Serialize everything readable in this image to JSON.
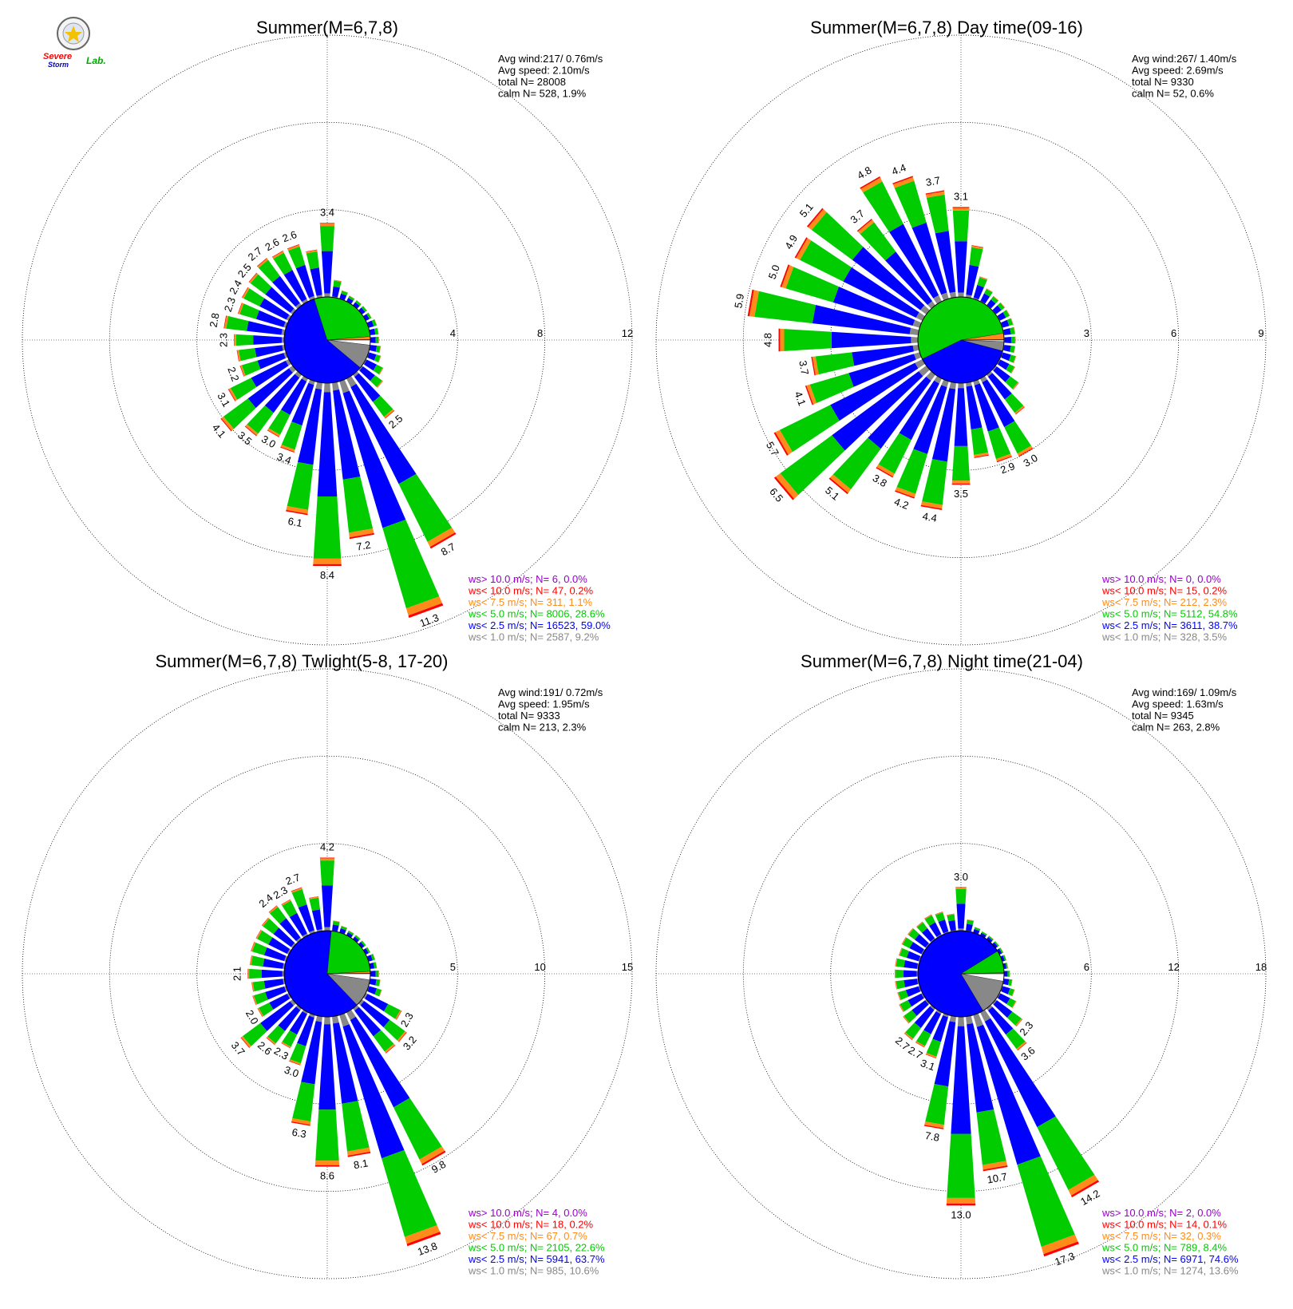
{
  "logo": {
    "line1": "Severe",
    "line2": "Storm",
    "line3": "Lab."
  },
  "legend_colors": {
    "gt10": "#9900cc",
    "lt10": "#ff0000",
    "lt7_5": "#ff8c1a",
    "lt5": "#00cc00",
    "lt2_5": "#0000ff",
    "lt1": "#888888"
  },
  "chart_data": [
    {
      "type": "wind-rose",
      "title": "Summer(M=6,7,8)",
      "rings": [
        4,
        8,
        12
      ],
      "ring_labels": [
        "4",
        "8",
        "12"
      ],
      "stats": {
        "avg_wind": "Avg wind:217/ 0.76m/s",
        "avg_speed": "Avg speed: 2.10m/s",
        "total": "total N=      28008",
        "calm": "calm N=    528,   1.9%"
      },
      "legend": [
        "ws> 10.0 m/s; N=     6,  0.0%",
        "ws< 10.0 m/s; N=    47,  0.2%",
        "ws<  7.5 m/s; N=   311,  1.1%",
        "ws<  5.0 m/s; N=  8006, 28.6%",
        "ws<  2.5 m/s; N= 16523, 59.0%",
        "ws<  1.0 m/s; N=  2587,  9.2%"
      ],
      "speed_pie": [
        1.9,
        9.2,
        59.0,
        28.6,
        1.1,
        0.2
      ],
      "bars": [
        {
          "dir": 0,
          "total": 3.4,
          "label": "3.4"
        },
        {
          "dir": 10,
          "total": 0.8,
          "label": ""
        },
        {
          "dir": 20,
          "total": 0.4,
          "label": ""
        },
        {
          "dir": 30,
          "total": 0.3,
          "label": ""
        },
        {
          "dir": 40,
          "total": 0.3,
          "label": ""
        },
        {
          "dir": 50,
          "total": 0.3,
          "label": ""
        },
        {
          "dir": 60,
          "total": 0.3,
          "label": ""
        },
        {
          "dir": 70,
          "total": 0.4,
          "label": ""
        },
        {
          "dir": 80,
          "total": 0.4,
          "label": ""
        },
        {
          "dir": 90,
          "total": 0.4,
          "label": ""
        },
        {
          "dir": 100,
          "total": 0.5,
          "label": ""
        },
        {
          "dir": 110,
          "total": 0.6,
          "label": ""
        },
        {
          "dir": 120,
          "total": 0.9,
          "label": ""
        },
        {
          "dir": 130,
          "total": 1.2,
          "label": ""
        },
        {
          "dir": 140,
          "total": 2.5,
          "label": "2.5"
        },
        {
          "dir": 150,
          "total": 8.7,
          "label": "8.7"
        },
        {
          "dir": 160,
          "total": 11.3,
          "label": "11.3"
        },
        {
          "dir": 170,
          "total": 7.2,
          "label": "7.2"
        },
        {
          "dir": 180,
          "total": 8.4,
          "label": "8.4"
        },
        {
          "dir": 190,
          "total": 6.1,
          "label": "6.1"
        },
        {
          "dir": 200,
          "total": 3.4,
          "label": "3.4"
        },
        {
          "dir": 210,
          "total": 3.0,
          "label": "3.0"
        },
        {
          "dir": 220,
          "total": 3.5,
          "label": "3.5"
        },
        {
          "dir": 230,
          "total": 4.1,
          "label": "4.1"
        },
        {
          "dir": 240,
          "total": 3.1,
          "label": "3.1"
        },
        {
          "dir": 250,
          "total": 2.2,
          "label": "2.2"
        },
        {
          "dir": 260,
          "total": 2.2,
          "label": ""
        },
        {
          "dir": 270,
          "total": 2.3,
          "label": "2.3"
        },
        {
          "dir": 280,
          "total": 2.8,
          "label": "2.8"
        },
        {
          "dir": 290,
          "total": 2.3,
          "label": "2.3"
        },
        {
          "dir": 300,
          "total": 2.4,
          "label": "2.4"
        },
        {
          "dir": 310,
          "total": 2.5,
          "label": "2.5"
        },
        {
          "dir": 320,
          "total": 2.7,
          "label": "2.7"
        },
        {
          "dir": 330,
          "total": 2.6,
          "label": "2.6"
        },
        {
          "dir": 340,
          "total": 2.6,
          "label": "2.6"
        },
        {
          "dir": 350,
          "total": 2.2,
          "label": ""
        }
      ]
    },
    {
      "type": "wind-rose",
      "title": "Summer(M=6,7,8) Day time(09-16)",
      "rings": [
        3,
        6,
        9
      ],
      "ring_labels": [
        "3",
        "6",
        "9"
      ],
      "stats": {
        "avg_wind": "Avg wind:267/ 1.40m/s",
        "avg_speed": "Avg speed: 2.69m/s",
        "total": "total N=       9330",
        "calm": "calm N=     52,   0.6%"
      },
      "legend": [
        "ws> 10.0 m/s; N=     0,  0.0%",
        "ws< 10.0 m/s; N=    15,  0.2%",
        "ws<  7.5 m/s; N=   212,  2.3%",
        "ws<  5.0 m/s; N=  5112, 54.8%",
        "ws<  2.5 m/s; N=  3611, 38.7%",
        "ws<  1.0 m/s; N=   328,  3.5%"
      ],
      "speed_pie": [
        0.6,
        3.5,
        38.7,
        54.8,
        2.3,
        0.2
      ],
      "bars": [
        {
          "dir": 0,
          "total": 3.1,
          "label": "3.1"
        },
        {
          "dir": 10,
          "total": 1.8,
          "label": ""
        },
        {
          "dir": 20,
          "total": 0.8,
          "label": ""
        },
        {
          "dir": 30,
          "total": 0.5,
          "label": ""
        },
        {
          "dir": 40,
          "total": 0.4,
          "label": ""
        },
        {
          "dir": 50,
          "total": 0.4,
          "label": ""
        },
        {
          "dir": 60,
          "total": 0.4,
          "label": ""
        },
        {
          "dir": 70,
          "total": 0.4,
          "label": ""
        },
        {
          "dir": 80,
          "total": 0.4,
          "label": ""
        },
        {
          "dir": 90,
          "total": 0.4,
          "label": ""
        },
        {
          "dir": 100,
          "total": 0.4,
          "label": ""
        },
        {
          "dir": 110,
          "total": 0.5,
          "label": ""
        },
        {
          "dir": 120,
          "total": 0.6,
          "label": ""
        },
        {
          "dir": 130,
          "total": 1.0,
          "label": ""
        },
        {
          "dir": 140,
          "total": 1.7,
          "label": ""
        },
        {
          "dir": 150,
          "total": 3.0,
          "label": "3.0"
        },
        {
          "dir": 160,
          "total": 2.9,
          "label": "2.9"
        },
        {
          "dir": 170,
          "total": 2.6,
          "label": ""
        },
        {
          "dir": 180,
          "total": 3.5,
          "label": "3.5"
        },
        {
          "dir": 190,
          "total": 4.4,
          "label": "4.4"
        },
        {
          "dir": 200,
          "total": 4.2,
          "label": "4.2"
        },
        {
          "dir": 210,
          "total": 3.8,
          "label": "3.8"
        },
        {
          "dir": 220,
          "total": 5.1,
          "label": "5.1"
        },
        {
          "dir": 230,
          "total": 6.5,
          "label": "6.5"
        },
        {
          "dir": 240,
          "total": 5.7,
          "label": "5.7"
        },
        {
          "dir": 250,
          "total": 4.1,
          "label": "4.1"
        },
        {
          "dir": 260,
          "total": 3.7,
          "label": "3.7"
        },
        {
          "dir": 270,
          "total": 4.8,
          "label": "4.8"
        },
        {
          "dir": 280,
          "total": 5.9,
          "label": "5.9"
        },
        {
          "dir": 290,
          "total": 5.0,
          "label": "5.0"
        },
        {
          "dir": 300,
          "total": 4.9,
          "label": "4.9"
        },
        {
          "dir": 310,
          "total": 5.1,
          "label": "5.1"
        },
        {
          "dir": 320,
          "total": 3.7,
          "label": "3.7"
        },
        {
          "dir": 330,
          "total": 4.8,
          "label": "4.8"
        },
        {
          "dir": 340,
          "total": 4.4,
          "label": "4.4"
        },
        {
          "dir": 350,
          "total": 3.7,
          "label": "3.7"
        }
      ]
    },
    {
      "type": "wind-rose",
      "title": "Summer(M=6,7,8) Twlight(5-8, 17-20)",
      "rings": [
        5,
        10,
        15
      ],
      "ring_labels": [
        "5",
        "10",
        "15"
      ],
      "stats": {
        "avg_wind": "Avg wind:191/ 0.72m/s",
        "avg_speed": "Avg speed: 1.95m/s",
        "total": "total N=       9333",
        "calm": "calm N=    213,   2.3%"
      },
      "legend": [
        "ws> 10.0 m/s; N=     4,  0.0%",
        "ws< 10.0 m/s; N=    18,  0.2%",
        "ws<  7.5 m/s; N=    67,  0.7%",
        "ws<  5.0 m/s; N=  2105, 22.6%",
        "ws<  2.5 m/s; N=  5941, 63.7%",
        "ws<  1.0 m/s; N=   985, 10.6%"
      ],
      "speed_pie": [
        2.3,
        10.6,
        63.7,
        22.6,
        0.7,
        0.2
      ],
      "bars": [
        {
          "dir": 0,
          "total": 4.2,
          "label": "4.2"
        },
        {
          "dir": 10,
          "total": 0.6,
          "label": ""
        },
        {
          "dir": 20,
          "total": 0.4,
          "label": ""
        },
        {
          "dir": 30,
          "total": 0.3,
          "label": ""
        },
        {
          "dir": 40,
          "total": 0.3,
          "label": ""
        },
        {
          "dir": 50,
          "total": 0.3,
          "label": ""
        },
        {
          "dir": 60,
          "total": 0.3,
          "label": ""
        },
        {
          "dir": 70,
          "total": 0.4,
          "label": ""
        },
        {
          "dir": 80,
          "total": 0.4,
          "label": ""
        },
        {
          "dir": 90,
          "total": 0.5,
          "label": ""
        },
        {
          "dir": 100,
          "total": 0.6,
          "label": ""
        },
        {
          "dir": 110,
          "total": 0.8,
          "label": ""
        },
        {
          "dir": 120,
          "total": 2.3,
          "label": "2.3"
        },
        {
          "dir": 130,
          "total": 3.2,
          "label": "3.2"
        },
        {
          "dir": 140,
          "total": 3.2,
          "label": ""
        },
        {
          "dir": 150,
          "total": 9.8,
          "label": "9.8"
        },
        {
          "dir": 160,
          "total": 13.8,
          "label": "13.8"
        },
        {
          "dir": 170,
          "total": 8.1,
          "label": "8.1"
        },
        {
          "dir": 180,
          "total": 8.6,
          "label": "8.6"
        },
        {
          "dir": 190,
          "total": 6.3,
          "label": "6.3"
        },
        {
          "dir": 200,
          "total": 3.0,
          "label": "3.0"
        },
        {
          "dir": 210,
          "total": 2.3,
          "label": "2.3"
        },
        {
          "dir": 220,
          "total": 2.6,
          "label": "2.6"
        },
        {
          "dir": 230,
          "total": 3.7,
          "label": "3.7"
        },
        {
          "dir": 240,
          "total": 2.0,
          "label": "2.0"
        },
        {
          "dir": 250,
          "total": 2.0,
          "label": ""
        },
        {
          "dir": 260,
          "total": 1.9,
          "label": ""
        },
        {
          "dir": 270,
          "total": 2.1,
          "label": "2.1"
        },
        {
          "dir": 280,
          "total": 2.0,
          "label": ""
        },
        {
          "dir": 290,
          "total": 2.1,
          "label": ""
        },
        {
          "dir": 300,
          "total": 2.1,
          "label": ""
        },
        {
          "dir": 310,
          "total": 2.2,
          "label": ""
        },
        {
          "dir": 320,
          "total": 2.4,
          "label": "2.4"
        },
        {
          "dir": 330,
          "total": 2.3,
          "label": "2.3"
        },
        {
          "dir": 340,
          "total": 2.7,
          "label": "2.7"
        },
        {
          "dir": 350,
          "total": 2.0,
          "label": ""
        }
      ]
    },
    {
      "type": "wind-rose",
      "title": "Summer(M=6,7,8) Night time(21-04)",
      "rings": [
        6,
        12,
        18
      ],
      "ring_labels": [
        "6",
        "12",
        "18"
      ],
      "stats": {
        "avg_wind": "Avg wind:169/ 1.09m/s",
        "avg_speed": "Avg speed: 1.63m/s",
        "total": "total N=       9345",
        "calm": "calm N=    263,   2.8%"
      },
      "legend": [
        "ws> 10.0 m/s; N=     2,  0.0%",
        "ws< 10.0 m/s; N=    14,  0.1%",
        "ws<  7.5 m/s; N=    32,  0.3%",
        "ws<  5.0 m/s; N=   789,  8.4%",
        "ws<  2.5 m/s; N=  6971, 74.6%",
        "ws<  1.0 m/s; N=  1274, 13.6%"
      ],
      "speed_pie": [
        2.8,
        13.6,
        74.6,
        8.4,
        0.3,
        0.1
      ],
      "bars": [
        {
          "dir": 0,
          "total": 3.0,
          "label": "3.0"
        },
        {
          "dir": 10,
          "total": 0.8,
          "label": ""
        },
        {
          "dir": 20,
          "total": 0.4,
          "label": ""
        },
        {
          "dir": 30,
          "total": 0.3,
          "label": ""
        },
        {
          "dir": 40,
          "total": 0.3,
          "label": ""
        },
        {
          "dir": 50,
          "total": 0.3,
          "label": ""
        },
        {
          "dir": 60,
          "total": 0.3,
          "label": ""
        },
        {
          "dir": 70,
          "total": 0.3,
          "label": ""
        },
        {
          "dir": 80,
          "total": 0.3,
          "label": ""
        },
        {
          "dir": 90,
          "total": 0.4,
          "label": ""
        },
        {
          "dir": 100,
          "total": 0.6,
          "label": ""
        },
        {
          "dir": 110,
          "total": 0.9,
          "label": ""
        },
        {
          "dir": 120,
          "total": 1.3,
          "label": ""
        },
        {
          "dir": 130,
          "total": 2.3,
          "label": "2.3"
        },
        {
          "dir": 140,
          "total": 3.6,
          "label": "3.6"
        },
        {
          "dir": 150,
          "total": 14.2,
          "label": "14.2"
        },
        {
          "dir": 160,
          "total": 17.3,
          "label": "17.3"
        },
        {
          "dir": 170,
          "total": 10.7,
          "label": "10.7"
        },
        {
          "dir": 180,
          "total": 13.0,
          "label": "13.0"
        },
        {
          "dir": 190,
          "total": 7.8,
          "label": "7.8"
        },
        {
          "dir": 200,
          "total": 3.1,
          "label": "3.1"
        },
        {
          "dir": 210,
          "total": 2.7,
          "label": "2.7"
        },
        {
          "dir": 220,
          "total": 2.7,
          "label": "2.7"
        },
        {
          "dir": 230,
          "total": 2.0,
          "label": ""
        },
        {
          "dir": 240,
          "total": 1.8,
          "label": ""
        },
        {
          "dir": 250,
          "total": 1.6,
          "label": ""
        },
        {
          "dir": 260,
          "total": 1.6,
          "label": ""
        },
        {
          "dir": 270,
          "total": 1.6,
          "label": ""
        },
        {
          "dir": 280,
          "total": 1.6,
          "label": ""
        },
        {
          "dir": 290,
          "total": 1.5,
          "label": ""
        },
        {
          "dir": 300,
          "total": 1.6,
          "label": ""
        },
        {
          "dir": 310,
          "total": 1.6,
          "label": ""
        },
        {
          "dir": 320,
          "total": 1.5,
          "label": ""
        },
        {
          "dir": 330,
          "total": 1.6,
          "label": ""
        },
        {
          "dir": 340,
          "total": 1.5,
          "label": ""
        },
        {
          "dir": 350,
          "total": 1.2,
          "label": ""
        }
      ]
    }
  ]
}
